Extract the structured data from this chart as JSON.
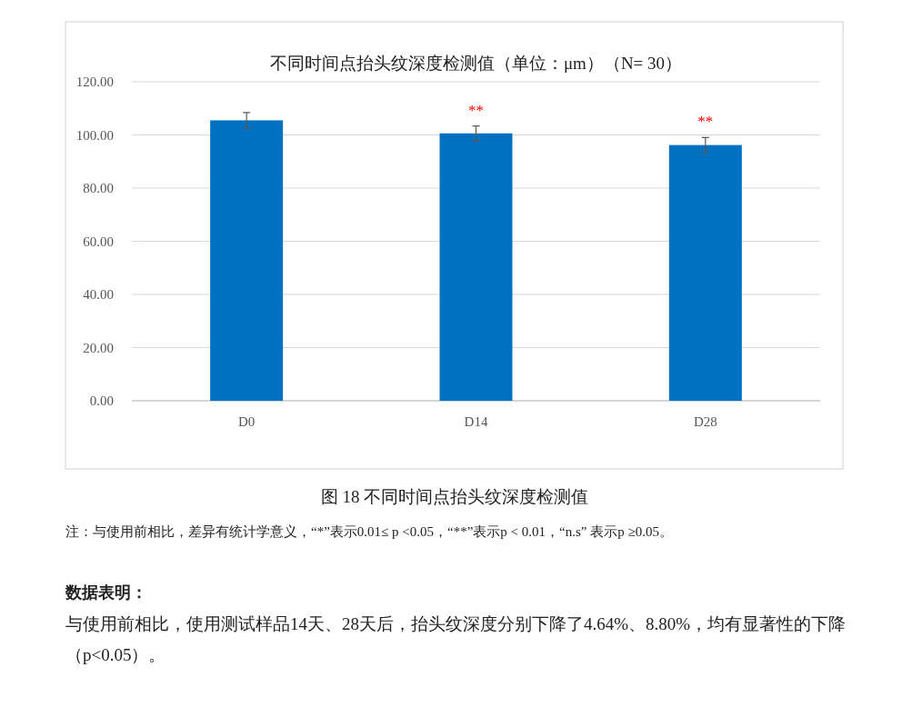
{
  "chart_data": {
    "type": "bar",
    "title": "不同时间点抬头纹深度检测值（单位：μm）（N= 30）",
    "categories": [
      "D0",
      "D14",
      "D28"
    ],
    "values": [
      105.5,
      100.6,
      96.2
    ],
    "errors": [
      2.9,
      2.8,
      2.8
    ],
    "color": "#0070c0",
    "ylim": [
      0,
      120
    ],
    "yticks": [
      {
        "value": 0,
        "label": "0.00"
      },
      {
        "value": 20,
        "label": "20.00"
      },
      {
        "value": 40,
        "label": "40.00"
      },
      {
        "value": 60,
        "label": "60.00"
      },
      {
        "value": 80,
        "label": "80.00"
      },
      {
        "value": 100,
        "label": "100.00"
      },
      {
        "value": 120,
        "label": "120.00"
      }
    ],
    "grid": "y",
    "annotations": [
      {
        "text": "**",
        "x": "D14",
        "y": 103.4
      },
      {
        "text": "**",
        "x": "D28",
        "y": 99.0
      },
      "图 18 不同时间点抬头纹深度检测值",
      "注：与使用前相比，差异有统计学意义，“*”表示0.01≤ p <0.05，“**”表示p < 0.01，“n.s” 表示p ≥0.05。",
      "数据表明：",
      "与使用前相比，使用测试样品14天、28天后，抬头纹深度分别下降了4.64%、8.80%，均有显著性的下降（p<0.05）。"
    ]
  }
}
